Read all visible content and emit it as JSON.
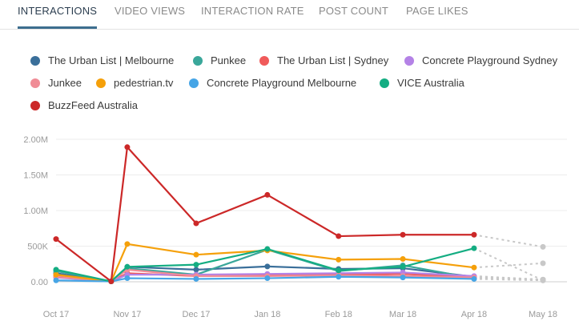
{
  "tabs": [
    {
      "label": "INTERACTIONS",
      "active": true
    },
    {
      "label": "VIDEO VIEWS",
      "active": false
    },
    {
      "label": "INTERACTION RATE",
      "active": false
    },
    {
      "label": "POST COUNT",
      "active": false
    },
    {
      "label": "PAGE LIKES",
      "active": false
    }
  ],
  "chart_data": {
    "type": "line",
    "categories": [
      "Oct 17",
      "Nov 17",
      "Dec 17",
      "Jan 18",
      "Feb 18",
      "Mar 18",
      "Apr 18",
      "May 18"
    ],
    "x": [
      "2017-10-01",
      "2017-10-25",
      "2017-11-01",
      "2017-12-01",
      "2018-01-01",
      "2018-02-01",
      "2018-03-01",
      "2018-04-01",
      "2018-05-01"
    ],
    "y_ticks": [
      "0.00",
      "500K",
      "1.00M",
      "1.50M",
      "2.00M"
    ],
    "ylim": [
      0,
      2000000
    ],
    "grid": true,
    "legend": "top",
    "projection_color": "#c8c8c8",
    "series": [
      {
        "name": "The Urban List | Melbourne",
        "color": "#3a6f9a",
        "values": [
          120000,
          5000,
          210000,
          170000,
          215000,
          180000,
          190000,
          70000
        ],
        "projection": 30000
      },
      {
        "name": "Punkee",
        "color": "#3aa79a",
        "values": [
          150000,
          5000,
          190000,
          100000,
          450000,
          150000,
          230000,
          50000
        ],
        "projection": 30000
      },
      {
        "name": "The Urban List | Sydney",
        "color": "#f05a5a",
        "values": [
          80000,
          5000,
          120000,
          80000,
          90000,
          100000,
          110000,
          60000
        ],
        "projection": 30000
      },
      {
        "name": "Concrete Playground Sydney",
        "color": "#b482e6",
        "values": [
          60000,
          5000,
          100000,
          100000,
          110000,
          120000,
          130000,
          80000
        ],
        "projection": 30000
      },
      {
        "name": "Junkee",
        "color": "#f08c96",
        "values": [
          70000,
          5000,
          170000,
          80000,
          80000,
          90000,
          80000,
          60000
        ],
        "projection": 30000
      },
      {
        "name": "pedestrian.tv",
        "color": "#f5a00a",
        "values": [
          100000,
          5000,
          530000,
          380000,
          440000,
          310000,
          320000,
          200000
        ],
        "projection": 260000
      },
      {
        "name": "Concrete Playground Melbourne",
        "color": "#46a5e6",
        "values": [
          20000,
          5000,
          50000,
          40000,
          50000,
          70000,
          60000,
          40000
        ],
        "projection": 20000
      },
      {
        "name": "VICE Australia",
        "color": "#14ad82",
        "values": [
          170000,
          5000,
          210000,
          240000,
          460000,
          160000,
          210000,
          470000
        ],
        "projection": 20000
      },
      {
        "name": "BuzzFeed Australia",
        "color": "#cc2828",
        "values": [
          600000,
          5000,
          1890000,
          820000,
          1220000,
          640000,
          660000,
          660000
        ],
        "projection": 490000
      }
    ]
  }
}
